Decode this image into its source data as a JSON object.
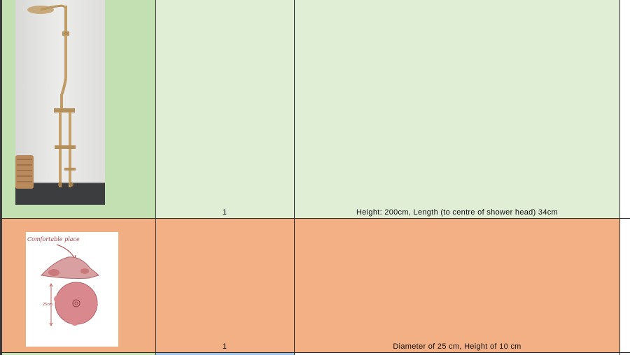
{
  "table": {
    "rows": [
      {
        "quantity": "1",
        "dimensions": "Height: 200cm, Length (to centre of shower head) 34cm",
        "image": "shower-column-photo",
        "colors": {
          "image_cell": "#c3e0b2",
          "cell": "#e1eed6"
        }
      },
      {
        "quantity": "1",
        "dimensions": "Diameter of 25 cm, Height of 10 cm",
        "image": "hand-sketch-drawing",
        "sketch_annotation": "Comfortable place",
        "sketch_dimension": "25cm",
        "colors": {
          "image_cell": "#f2ae83",
          "cell": "#f3b084"
        }
      }
    ]
  },
  "colors": {
    "border": "#2b2b2b",
    "next_row_green": "#c6e0b4",
    "next_row_blue": "#9dc3e6"
  }
}
